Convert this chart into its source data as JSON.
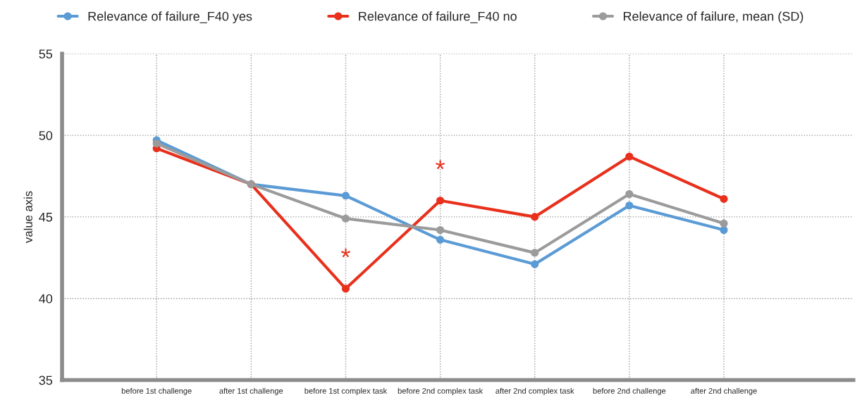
{
  "chart_data": {
    "type": "line",
    "ylabel": "value axis",
    "categories": [
      "before 1st challenge",
      "after 1st challenge",
      "before 1st complex task",
      "before 2nd complex task",
      "after 2nd complex task",
      "before 2nd challenge",
      "after 2nd challenge"
    ],
    "series": [
      {
        "name": "Relevance of failure_F40 yes",
        "color": "#5b9bd5",
        "values": [
          49.7,
          47.0,
          46.3,
          43.6,
          42.1,
          45.7,
          44.2
        ]
      },
      {
        "name": "Relevance of failure_F40 no",
        "color": "#e8301c",
        "values": [
          49.2,
          47.0,
          40.6,
          46.0,
          45.0,
          48.7,
          46.1
        ]
      },
      {
        "name": "Relevance of failure, mean (SD)",
        "color": "#9b9b9b",
        "values": [
          49.5,
          47.0,
          44.9,
          44.2,
          42.8,
          46.4,
          44.6
        ]
      }
    ],
    "ylim": [
      35,
      55
    ],
    "yticks": [
      35,
      40,
      45,
      50,
      55
    ],
    "grid": true,
    "legend": "top",
    "marker": "circle",
    "line_style": "solid",
    "annotations": [
      {
        "text": "*",
        "x": "before 1st complex task",
        "y": 40.6
      },
      {
        "text": "*",
        "x": "before 2nd complex task",
        "y": 46.0
      }
    ]
  }
}
